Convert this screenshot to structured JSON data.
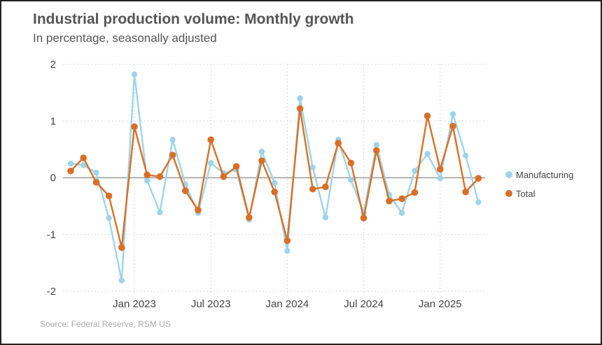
{
  "chart_data": {
    "type": "line",
    "title": "Industrial production volume: Monthly growth",
    "subtitle": "In percentage, seasonally adjusted",
    "source": "Source: Federal Reserve, RSM US",
    "xlabel": "",
    "ylabel": "",
    "ylim": [
      -2,
      2
    ],
    "yticks": [
      2,
      1,
      0,
      -1,
      -2
    ],
    "x": [
      "2022-08",
      "2022-09",
      "2022-10",
      "2022-11",
      "2022-12",
      "2023-01",
      "2023-02",
      "2023-03",
      "2023-04",
      "2023-05",
      "2023-06",
      "2023-07",
      "2023-08",
      "2023-09",
      "2023-10",
      "2023-11",
      "2023-12",
      "2024-01",
      "2024-02",
      "2024-03",
      "2024-04",
      "2024-05",
      "2024-06",
      "2024-07",
      "2024-08",
      "2024-09",
      "2024-10",
      "2024-11",
      "2024-12",
      "2025-01",
      "2025-02",
      "2025-03",
      "2025-04"
    ],
    "xticks": [
      {
        "index": 5,
        "label": "Jan 2023"
      },
      {
        "index": 11,
        "label": "Jul 2023"
      },
      {
        "index": 17,
        "label": "Jan 2024"
      },
      {
        "index": 23,
        "label": "Jul 2024"
      },
      {
        "index": 29,
        "label": "Jan 2025"
      }
    ],
    "series": [
      {
        "name": "Manufacturing",
        "color": "#9dd4ea",
        "values": [
          0.25,
          0.22,
          0.09,
          -0.71,
          -1.81,
          1.82,
          -0.05,
          -0.61,
          0.67,
          -0.12,
          -0.62,
          0.26,
          0.08,
          0.14,
          -0.74,
          0.46,
          -0.09,
          -1.29,
          1.4,
          0.18,
          -0.7,
          0.67,
          -0.04,
          -0.62,
          0.58,
          -0.3,
          -0.62,
          0.12,
          0.42,
          -0.01,
          1.12,
          0.39,
          -0.43
        ]
      },
      {
        "name": "Total",
        "color": "#d96f27",
        "values": [
          0.12,
          0.35,
          -0.08,
          -0.32,
          -1.23,
          0.9,
          0.05,
          0.02,
          0.4,
          -0.23,
          -0.57,
          0.67,
          0.02,
          0.2,
          -0.7,
          0.3,
          -0.25,
          -1.11,
          1.22,
          -0.2,
          -0.16,
          0.61,
          0.26,
          -0.71,
          0.48,
          -0.41,
          -0.37,
          -0.26,
          1.09,
          0.15,
          0.91,
          -0.25,
          -0.01
        ]
      }
    ],
    "legend_position": "right",
    "grid": true
  }
}
